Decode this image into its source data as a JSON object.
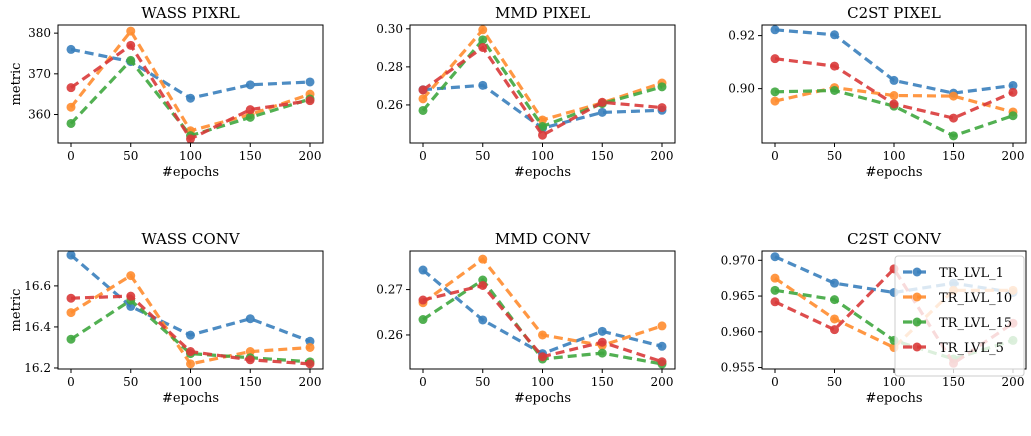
{
  "chart_data": [
    {
      "type": "line",
      "title": "WASS PIXRL",
      "xlabel": "#epochs",
      "ylabel": "metric",
      "x": [
        0,
        50,
        100,
        150,
        200
      ],
      "xticks": [
        "0",
        "50",
        "100",
        "150",
        "200"
      ],
      "ylim": [
        353,
        382
      ],
      "yticks": [
        "360",
        "370",
        "380"
      ],
      "ytick_values": [
        360,
        370,
        380
      ],
      "series": [
        {
          "name": "TR_LVL_1",
          "values": [
            376,
            373,
            364,
            367.3,
            368
          ]
        },
        {
          "name": "TR_LVL_10",
          "values": [
            361.8,
            380.5,
            356,
            360,
            365
          ]
        },
        {
          "name": "TR_LVL_15",
          "values": [
            357.8,
            373.3,
            354.8,
            359.3,
            363.8
          ]
        },
        {
          "name": "TR_LVL_5",
          "values": [
            366.6,
            377,
            354,
            361.2,
            363.4
          ]
        }
      ]
    },
    {
      "type": "line",
      "title": "MMD PIXEL",
      "xlabel": "#epochs",
      "ylabel": "",
      "x": [
        0,
        50,
        100,
        150,
        200
      ],
      "xticks": [
        "0",
        "50",
        "100",
        "150",
        "200"
      ],
      "ylim": [
        0.24,
        0.302
      ],
      "yticks": [
        "0.26",
        "0.28",
        "0.30"
      ],
      "ytick_values": [
        0.26,
        0.28,
        0.3
      ],
      "series": [
        {
          "name": "TR_LVL_1",
          "values": [
            0.268,
            0.2703,
            0.2478,
            0.2561,
            0.2572
          ]
        },
        {
          "name": "TR_LVL_10",
          "values": [
            0.2632,
            0.2995,
            0.2521,
            0.2611,
            0.2715
          ]
        },
        {
          "name": "TR_LVL_15",
          "values": [
            0.2571,
            0.2942,
            0.2487,
            0.2607,
            0.2695
          ]
        },
        {
          "name": "TR_LVL_5",
          "values": [
            0.2679,
            0.2902,
            0.2441,
            0.2614,
            0.2586
          ]
        }
      ]
    },
    {
      "type": "line",
      "title": "C2ST PIXEL",
      "xlabel": "#epochs",
      "ylabel": "",
      "x": [
        0,
        50,
        100,
        150,
        200
      ],
      "xticks": [
        "0",
        "50",
        "100",
        "150",
        "200"
      ],
      "ylim": [
        0.8795,
        0.924
      ],
      "yticks": [
        "0.90",
        "0.92"
      ],
      "ytick_values": [
        0.9,
        0.92
      ],
      "series": [
        {
          "name": "TR_LVL_1",
          "values": [
            0.9222,
            0.9203,
            0.9031,
            0.8983,
            0.9012
          ]
        },
        {
          "name": "TR_LVL_10",
          "values": [
            0.8953,
            0.9004,
            0.8974,
            0.8972,
            0.8912
          ]
        },
        {
          "name": "TR_LVL_15",
          "values": [
            0.8988,
            0.8993,
            0.8934,
            0.8822,
            0.8898
          ]
        },
        {
          "name": "TR_LVL_5",
          "values": [
            0.9113,
            0.9085,
            0.8942,
            0.8889,
            0.8986
          ]
        }
      ]
    },
    {
      "type": "line",
      "title": "WASS CONV",
      "xlabel": "#epochs",
      "ylabel": "metric",
      "x": [
        0,
        50,
        100,
        150,
        200
      ],
      "xticks": [
        "0",
        "50",
        "100",
        "150",
        "200"
      ],
      "ylim": [
        16.195,
        16.77
      ],
      "yticks": [
        "16.2",
        "16.4",
        "16.6"
      ],
      "ytick_values": [
        16.2,
        16.4,
        16.6
      ],
      "series": [
        {
          "name": "TR_LVL_1",
          "values": [
            16.75,
            16.5,
            16.36,
            16.44,
            16.33
          ]
        },
        {
          "name": "TR_LVL_10",
          "values": [
            16.47,
            16.65,
            16.22,
            16.28,
            16.3
          ]
        },
        {
          "name": "TR_LVL_15",
          "values": [
            16.34,
            16.53,
            16.27,
            16.25,
            16.23
          ]
        },
        {
          "name": "TR_LVL_5",
          "values": [
            16.54,
            16.55,
            16.28,
            16.24,
            16.22
          ]
        }
      ]
    },
    {
      "type": "line",
      "title": "MMD CONV",
      "xlabel": "#epochs",
      "ylabel": "",
      "x": [
        0,
        50,
        100,
        150,
        200
      ],
      "xticks": [
        "0",
        "50",
        "100",
        "150",
        "200"
      ],
      "ylim": [
        0.2525,
        0.2785
      ],
      "yticks": [
        "0.26",
        "0.27"
      ],
      "ytick_values": [
        0.26,
        0.27
      ],
      "series": [
        {
          "name": "TR_LVL_1",
          "values": [
            0.2743,
            0.2633,
            0.2559,
            0.2608,
            0.2575
          ]
        },
        {
          "name": "TR_LVL_10",
          "values": [
            0.2671,
            0.2767,
            0.26,
            0.2577,
            0.262
          ]
        },
        {
          "name": "TR_LVL_15",
          "values": [
            0.2634,
            0.2721,
            0.2547,
            0.256,
            0.2536
          ]
        },
        {
          "name": "TR_LVL_5",
          "values": [
            0.2677,
            0.2709,
            0.2552,
            0.2584,
            0.2541
          ]
        }
      ]
    },
    {
      "type": "line",
      "title": "C2ST CONV",
      "xlabel": "#epochs",
      "ylabel": "",
      "x": [
        0,
        50,
        100,
        150,
        200
      ],
      "xticks": [
        "0",
        "50",
        "100",
        "150",
        "200"
      ],
      "ylim": [
        0.9548,
        0.9713
      ],
      "yticks": [
        "0.955",
        "0.960",
        "0.965",
        "0.970"
      ],
      "ytick_values": [
        0.955,
        0.96,
        0.965,
        0.97
      ],
      "legend": {
        "position": "top-right",
        "entries": [
          "TR_LVL_1",
          "TR_LVL_10",
          "TR_LVL_15",
          "TR_LVL_5"
        ]
      },
      "series": [
        {
          "name": "TR_LVL_1",
          "values": [
            0.9705,
            0.9668,
            0.9655,
            0.9668,
            0.9655
          ]
        },
        {
          "name": "TR_LVL_10",
          "values": [
            0.9675,
            0.9618,
            0.9578,
            0.9658,
            0.9658
          ]
        },
        {
          "name": "TR_LVL_15",
          "values": [
            0.9658,
            0.9645,
            0.9588,
            0.9562,
            0.9588
          ]
        },
        {
          "name": "TR_LVL_5",
          "values": [
            0.9642,
            0.9603,
            0.9688,
            0.9556,
            0.9612
          ]
        }
      ]
    }
  ],
  "series_colors": {
    "TR_LVL_1": "#3a7fbd",
    "TR_LVL_10": "#ff8c2f",
    "TR_LVL_15": "#3fa73f",
    "TR_LVL_5": "#d93a3a"
  }
}
